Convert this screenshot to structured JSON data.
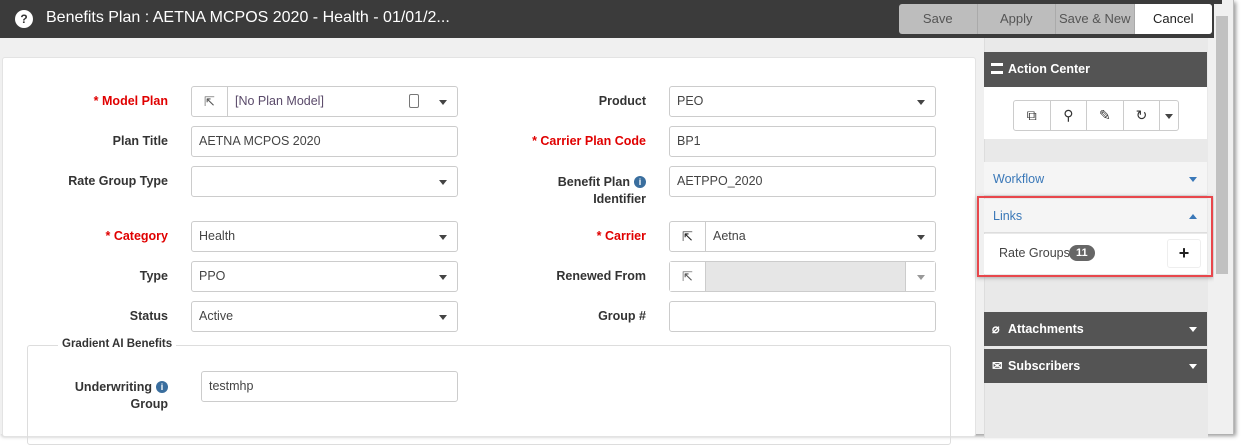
{
  "window": {
    "title": "Benefits Plan : AETNA MCPOS 2020 - Health - 01/01/2...",
    "help_icon": "question-circle-icon"
  },
  "toolbar": {
    "save": "Save",
    "apply": "Apply",
    "save_new": "Save & New",
    "cancel": "Cancel"
  },
  "form": {
    "model_plan": {
      "label": "Model Plan",
      "value": "[No Plan Model]"
    },
    "plan_title": {
      "label": "Plan Title",
      "value": "AETNA MCPOS 2020"
    },
    "rate_group_type": {
      "label": "Rate Group Type",
      "value": ""
    },
    "category": {
      "label": "Category",
      "value": "Health"
    },
    "type": {
      "label": "Type",
      "value": "PPO"
    },
    "status": {
      "label": "Status",
      "value": "Active"
    },
    "product": {
      "label": "Product",
      "value": "PEO"
    },
    "carrier_plan_code": {
      "label": "Carrier Plan Code",
      "value": "BP1"
    },
    "benefit_plan_identifier": {
      "label1": "Benefit Plan",
      "label2": "Identifier",
      "value": "AETPPO_2020"
    },
    "carrier": {
      "label": "Carrier",
      "value": "Aetna"
    },
    "renewed_from": {
      "label": "Renewed From",
      "value": ""
    },
    "group_no": {
      "label": "Group #",
      "value": ""
    },
    "required_marker": "* "
  },
  "gradient": {
    "legend": "Gradient AI Benefits",
    "underwriting_group": {
      "label1": "Underwriting",
      "label2": "Group",
      "value": "testmhp"
    }
  },
  "action_center": {
    "title": "Action Center",
    "workflow": "Workflow",
    "links": "Links",
    "rate_groups": "Rate Groups",
    "rate_groups_count": "11",
    "attachments": "Attachments",
    "subscribers": "Subscribers",
    "highlight_color": "#e8474c"
  }
}
